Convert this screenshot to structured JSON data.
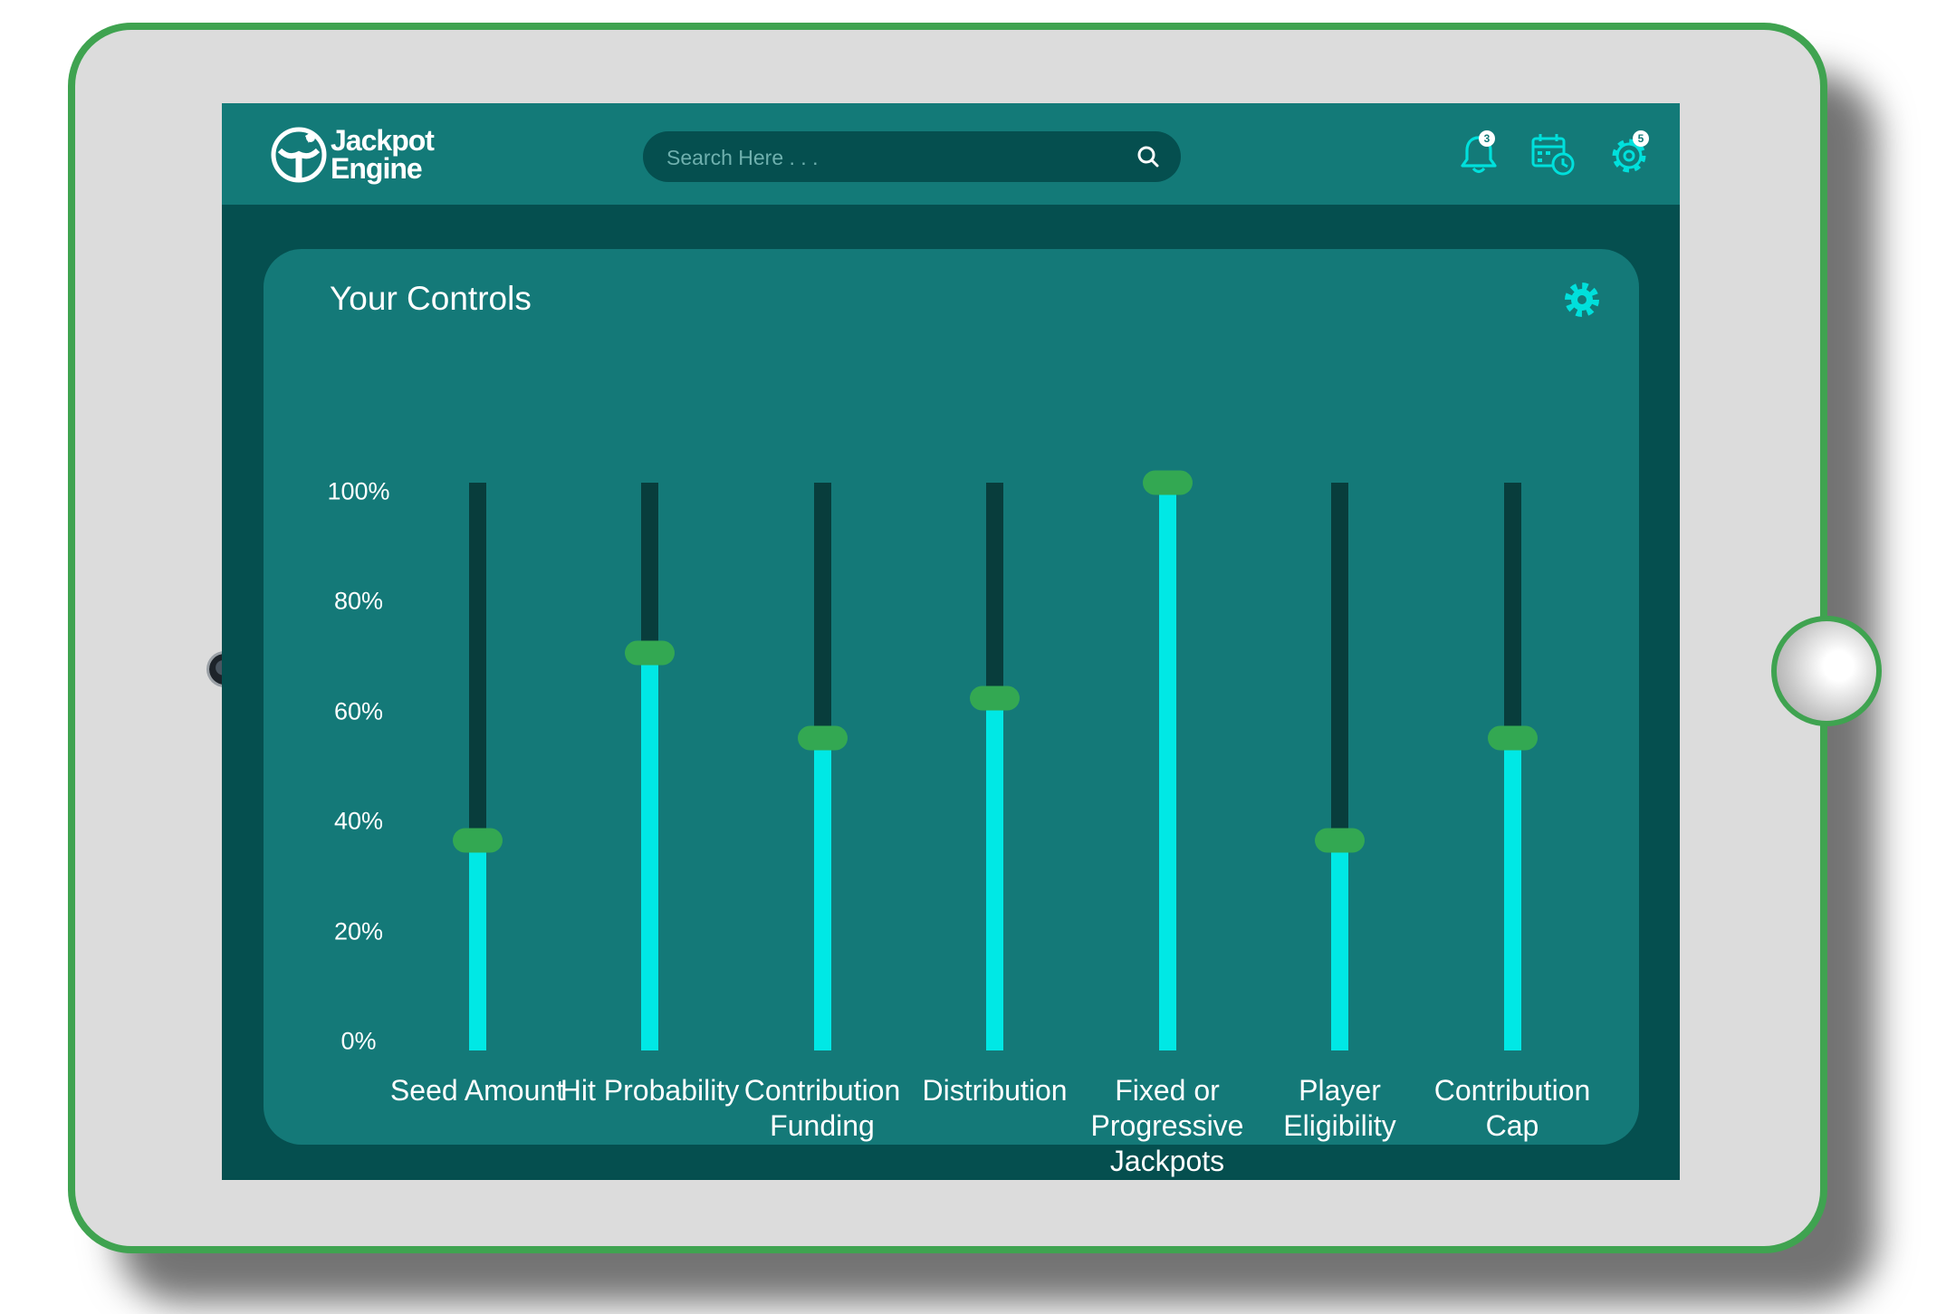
{
  "app": {
    "logo_line1": "Jackpot",
    "logo_line2": "Engine"
  },
  "search": {
    "placeholder": "Search Here . . .",
    "value": ""
  },
  "header_icons": [
    {
      "name": "bell-icon",
      "badge": "3"
    },
    {
      "name": "calendar-clock-icon",
      "badge": ""
    },
    {
      "name": "gear-icon",
      "badge": "5"
    }
  ],
  "panel": {
    "title": "Your Controls"
  },
  "yaxis": {
    "ticks": [
      "100%",
      "80%",
      "60%",
      "40%",
      "20%",
      "0%"
    ]
  },
  "sliders": [
    {
      "label": "Seed Amount",
      "value": 37
    },
    {
      "label": "Hit Probability",
      "value": 70
    },
    {
      "label": "Contribution Funding",
      "value": 55
    },
    {
      "label": "Distribution",
      "value": 62
    },
    {
      "label": "Fixed or Progressive Jackpots",
      "value": 100
    },
    {
      "label": "Player Eligibility",
      "value": 37
    },
    {
      "label": "Contribution Cap",
      "value": 55
    }
  ],
  "colors": {
    "frame": "#3fa350",
    "header": "#137a78",
    "screen_bg": "#054f4f",
    "panel_bg": "#147978",
    "track": "#083d3c",
    "fill": "#00e8e5",
    "handle": "#33a852"
  }
}
